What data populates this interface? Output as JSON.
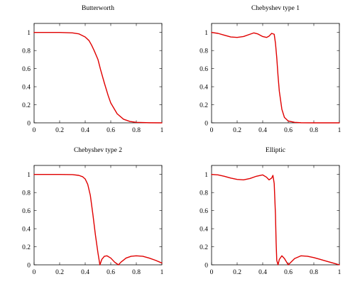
{
  "chart_data": [
    {
      "type": "line",
      "title": "Butterworth",
      "xlabel": "",
      "ylabel": "",
      "xlim": [
        0,
        1
      ],
      "ylim": [
        0,
        1.1
      ],
      "xticks": [
        "0",
        "0.2",
        "0.4",
        "0.6",
        "0.8",
        "1"
      ],
      "yticks": [
        "0",
        "0.2",
        "0.4",
        "0.6",
        "0.8",
        "1"
      ],
      "grid": false,
      "line_color": "#e00000",
      "series": [
        {
          "x": [
            0,
            0.1,
            0.2,
            0.3,
            0.35,
            0.4,
            0.43,
            0.45,
            0.47,
            0.5,
            0.52,
            0.55,
            0.58,
            0.6,
            0.65,
            0.7,
            0.75,
            0.8,
            0.9,
            1.0
          ],
          "y": [
            1.0,
            1.0,
            1.0,
            0.995,
            0.985,
            0.95,
            0.91,
            0.86,
            0.8,
            0.7,
            0.59,
            0.44,
            0.3,
            0.22,
            0.1,
            0.04,
            0.015,
            0.005,
            0.001,
            0
          ]
        }
      ]
    },
    {
      "type": "line",
      "title": "Chebyshev type 1",
      "xlabel": "",
      "ylabel": "",
      "xlim": [
        0,
        1
      ],
      "ylim": [
        0,
        1.1
      ],
      "xticks": [
        "0",
        "0.2",
        "0.4",
        "0.6",
        "0.8",
        "1"
      ],
      "yticks": [
        "0",
        "0.2",
        "0.4",
        "0.6",
        "0.8",
        "1"
      ],
      "grid": false,
      "line_color": "#e00000",
      "series": [
        {
          "x": [
            0,
            0.05,
            0.1,
            0.15,
            0.2,
            0.25,
            0.3,
            0.33,
            0.36,
            0.4,
            0.43,
            0.45,
            0.47,
            0.49,
            0.5,
            0.51,
            0.52,
            0.53,
            0.55,
            0.57,
            0.6,
            0.65,
            0.7,
            0.8,
            0.9,
            1.0
          ],
          "y": [
            1.0,
            0.99,
            0.97,
            0.95,
            0.945,
            0.955,
            0.98,
            0.995,
            0.985,
            0.955,
            0.945,
            0.96,
            0.99,
            0.98,
            0.88,
            0.72,
            0.52,
            0.35,
            0.15,
            0.06,
            0.02,
            0.005,
            0.001,
            0,
            0,
            0
          ]
        }
      ]
    },
    {
      "type": "line",
      "title": "Chebyshev type 2",
      "xlabel": "",
      "ylabel": "",
      "xlim": [
        0,
        1
      ],
      "ylim": [
        0,
        1.1
      ],
      "xticks": [
        "0",
        "0.2",
        "0.4",
        "0.6",
        "0.8",
        "1"
      ],
      "yticks": [
        "0",
        "0.2",
        "0.4",
        "0.6",
        "0.8",
        "1"
      ],
      "grid": false,
      "line_color": "#e00000",
      "series": [
        {
          "x": [
            0,
            0.1,
            0.2,
            0.3,
            0.35,
            0.38,
            0.4,
            0.42,
            0.44,
            0.46,
            0.48,
            0.5,
            0.515,
            0.53,
            0.55,
            0.57,
            0.6,
            0.63,
            0.66,
            0.68,
            0.72,
            0.76,
            0.8,
            0.85,
            0.9,
            0.95,
            1.0
          ],
          "y": [
            1.0,
            1.0,
            1.0,
            0.998,
            0.99,
            0.975,
            0.95,
            0.89,
            0.77,
            0.56,
            0.33,
            0.13,
            0.0,
            0.06,
            0.095,
            0.1,
            0.075,
            0.03,
            0.0,
            0.03,
            0.075,
            0.095,
            0.1,
            0.095,
            0.075,
            0.05,
            0.02
          ]
        }
      ]
    },
    {
      "type": "line",
      "title": "Elliptic",
      "xlabel": "",
      "ylabel": "",
      "xlim": [
        0,
        1
      ],
      "ylim": [
        0,
        1.1
      ],
      "xticks": [
        "0",
        "0.2",
        "0.4",
        "0.6",
        "0.8",
        "1"
      ],
      "yticks": [
        "0",
        "0.2",
        "0.4",
        "0.6",
        "0.8",
        "1"
      ],
      "grid": false,
      "line_color": "#e00000",
      "series": [
        {
          "x": [
            0,
            0.05,
            0.1,
            0.15,
            0.2,
            0.25,
            0.3,
            0.35,
            0.4,
            0.43,
            0.45,
            0.47,
            0.48,
            0.49,
            0.5,
            0.505,
            0.51,
            0.52,
            0.53,
            0.55,
            0.57,
            0.6,
            0.65,
            0.7,
            0.75,
            0.8,
            0.85,
            0.9,
            0.95,
            1.0
          ],
          "y": [
            1.0,
            0.995,
            0.98,
            0.96,
            0.945,
            0.94,
            0.955,
            0.98,
            0.995,
            0.97,
            0.94,
            0.96,
            0.99,
            0.9,
            0.55,
            0.25,
            0.05,
            0.0,
            0.06,
            0.1,
            0.07,
            0.0,
            0.07,
            0.1,
            0.095,
            0.08,
            0.06,
            0.04,
            0.02,
            0.0
          ]
        }
      ]
    }
  ]
}
